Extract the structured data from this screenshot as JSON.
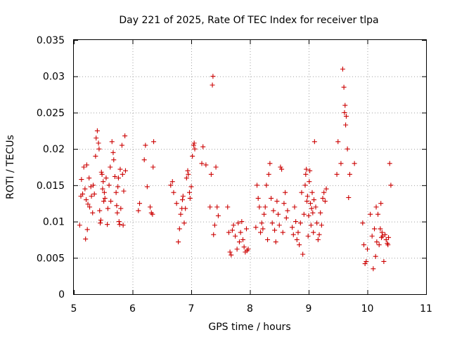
{
  "chart_data": {
    "type": "scatter",
    "title": "Day 221 of 2025, Rate Of TEC Index for receiver tlpa",
    "xlabel": "GPS time / hours",
    "ylabel": "ROTI / TECUs",
    "xlim": [
      5,
      11
    ],
    "ylim": [
      0,
      0.035
    ],
    "x_ticks": [
      "5",
      "6",
      "7",
      "8",
      "9",
      "10",
      "11"
    ],
    "y_ticks": [
      "0",
      "0.005",
      "0.01",
      "0.015",
      "0.02",
      "0.025",
      "0.03",
      "0.035"
    ],
    "grid": true,
    "marker": "plus",
    "color": "#cc0000",
    "series": [
      {
        "x": [
          5.1,
          5.12,
          5.13,
          5.15,
          5.17,
          5.19,
          5.2,
          5.21,
          5.22,
          5.23,
          5.24,
          5.26,
          5.27,
          5.29,
          5.3,
          5.32,
          5.33,
          5.35,
          5.37,
          5.38,
          5.4,
          5.42,
          5.43,
          5.44,
          5.45,
          5.46,
          5.47,
          5.48,
          5.49,
          5.5,
          5.51,
          5.52,
          5.53,
          5.55,
          5.57,
          5.58,
          5.6,
          5.62,
          5.63,
          5.65,
          5.67,
          5.68,
          5.7,
          5.72,
          5.73,
          5.74,
          5.75,
          5.76,
          5.77,
          5.78,
          5.79,
          5.8,
          5.82,
          5.83,
          5.84,
          5.85,
          5.87,
          5.88,
          6.1,
          6.12,
          6.2,
          6.22,
          6.25,
          6.3,
          6.32,
          6.34,
          6.35,
          6.36,
          6.65,
          6.68,
          6.7,
          6.75,
          6.78,
          6.8,
          6.82,
          6.84,
          6.85,
          6.86,
          6.88,
          6.9,
          6.92,
          6.94,
          6.95,
          6.97,
          6.98,
          7.0,
          7.02,
          7.04,
          7.05,
          7.06,
          7.18,
          7.2,
          7.25,
          7.32,
          7.34,
          7.36,
          7.37,
          7.38,
          7.4,
          7.42,
          7.44,
          7.46,
          7.62,
          7.64,
          7.66,
          7.68,
          7.7,
          7.72,
          7.75,
          7.78,
          7.8,
          7.82,
          7.84,
          7.86,
          7.88,
          7.9,
          7.92,
          7.94,
          7.95,
          7.97,
          8.1,
          8.12,
          8.14,
          8.16,
          8.18,
          8.2,
          8.22,
          8.24,
          8.26,
          8.28,
          8.3,
          8.32,
          8.34,
          8.36,
          8.38,
          8.4,
          8.42,
          8.44,
          8.46,
          8.48,
          8.5,
          8.52,
          8.54,
          8.56,
          8.58,
          8.6,
          8.62,
          8.64,
          8.72,
          8.74,
          8.76,
          8.78,
          8.8,
          8.82,
          8.84,
          8.86,
          8.88,
          8.9,
          8.92,
          8.94,
          8.95,
          8.96,
          8.97,
          8.98,
          8.99,
          9.0,
          9.01,
          9.02,
          9.03,
          9.04,
          9.05,
          9.06,
          9.07,
          9.08,
          9.09,
          9.1,
          9.12,
          9.14,
          9.16,
          9.18,
          9.2,
          9.22,
          9.24,
          9.26,
          9.28,
          9.3,
          9.48,
          9.5,
          9.55,
          9.58,
          9.6,
          9.61,
          9.62,
          9.63,
          9.64,
          9.66,
          9.68,
          9.7,
          9.78,
          9.92,
          9.94,
          9.96,
          9.98,
          10.0,
          10.05,
          10.08,
          10.1,
          10.12,
          10.14,
          10.15,
          10.16,
          10.18,
          10.2,
          10.22,
          10.23,
          10.24,
          10.25,
          10.26,
          10.28,
          10.3,
          10.32,
          10.34,
          10.35,
          10.36,
          10.38,
          10.4
        ],
        "y": [
          0.0095,
          0.0135,
          0.0158,
          0.0138,
          0.0175,
          0.0145,
          0.0076,
          0.013,
          0.0178,
          0.0089,
          0.0124,
          0.016,
          0.012,
          0.0148,
          0.0135,
          0.0112,
          0.015,
          0.0138,
          0.019,
          0.0215,
          0.0225,
          0.0208,
          0.02,
          0.0115,
          0.0098,
          0.0102,
          0.0168,
          0.0165,
          0.0145,
          0.0155,
          0.0128,
          0.014,
          0.0132,
          0.016,
          0.0096,
          0.0118,
          0.015,
          0.0175,
          0.0128,
          0.021,
          0.0195,
          0.0185,
          0.0162,
          0.014,
          0.0122,
          0.0112,
          0.0148,
          0.016,
          0.01,
          0.0096,
          0.0172,
          0.0118,
          0.0205,
          0.0165,
          0.0095,
          0.0142,
          0.0218,
          0.017,
          0.0115,
          0.0125,
          0.0185,
          0.0205,
          0.0148,
          0.012,
          0.0112,
          0.011,
          0.0175,
          0.021,
          0.015,
          0.0155,
          0.014,
          0.0125,
          0.0072,
          0.009,
          0.011,
          0.0118,
          0.013,
          0.0135,
          0.0098,
          0.0118,
          0.016,
          0.017,
          0.0165,
          0.014,
          0.0132,
          0.0148,
          0.019,
          0.0205,
          0.0208,
          0.02,
          0.018,
          0.0203,
          0.0178,
          0.012,
          0.0165,
          0.0288,
          0.03,
          0.0082,
          0.0095,
          0.0175,
          0.012,
          0.0108,
          0.012,
          0.0085,
          0.0058,
          0.0054,
          0.0088,
          0.0095,
          0.008,
          0.0062,
          0.0098,
          0.0072,
          0.0085,
          0.01,
          0.0075,
          0.0065,
          0.0058,
          0.009,
          0.006,
          0.0062,
          0.0092,
          0.015,
          0.0132,
          0.012,
          0.0085,
          0.0098,
          0.009,
          0.011,
          0.012,
          0.015,
          0.0075,
          0.0165,
          0.018,
          0.0132,
          0.0098,
          0.0115,
          0.0088,
          0.0072,
          0.0128,
          0.011,
          0.0095,
          0.0175,
          0.0172,
          0.0085,
          0.0125,
          0.014,
          0.0105,
          0.0115,
          0.0092,
          0.0082,
          0.012,
          0.01,
          0.0075,
          0.0085,
          0.0068,
          0.0098,
          0.014,
          0.0055,
          0.011,
          0.015,
          0.0165,
          0.0172,
          0.0128,
          0.0135,
          0.008,
          0.0108,
          0.0155,
          0.017,
          0.0125,
          0.0095,
          0.0118,
          0.014,
          0.0112,
          0.0085,
          0.013,
          0.021,
          0.012,
          0.0098,
          0.0075,
          0.0082,
          0.0112,
          0.0095,
          0.0132,
          0.014,
          0.0128,
          0.0145,
          0.0165,
          0.021,
          0.018,
          0.031,
          0.0285,
          0.025,
          0.026,
          0.0233,
          0.0245,
          0.02,
          0.0133,
          0.0165,
          0.018,
          0.0098,
          0.0068,
          0.0042,
          0.0045,
          0.0062,
          0.011,
          0.008,
          0.0035,
          0.009,
          0.0052,
          0.012,
          0.0072,
          0.011,
          0.0068,
          0.009,
          0.0125,
          0.0078,
          0.0085,
          0.008,
          0.0045,
          0.0082,
          0.0075,
          0.007,
          0.0068,
          0.0078,
          0.018,
          0.015
        ]
      }
    ]
  }
}
